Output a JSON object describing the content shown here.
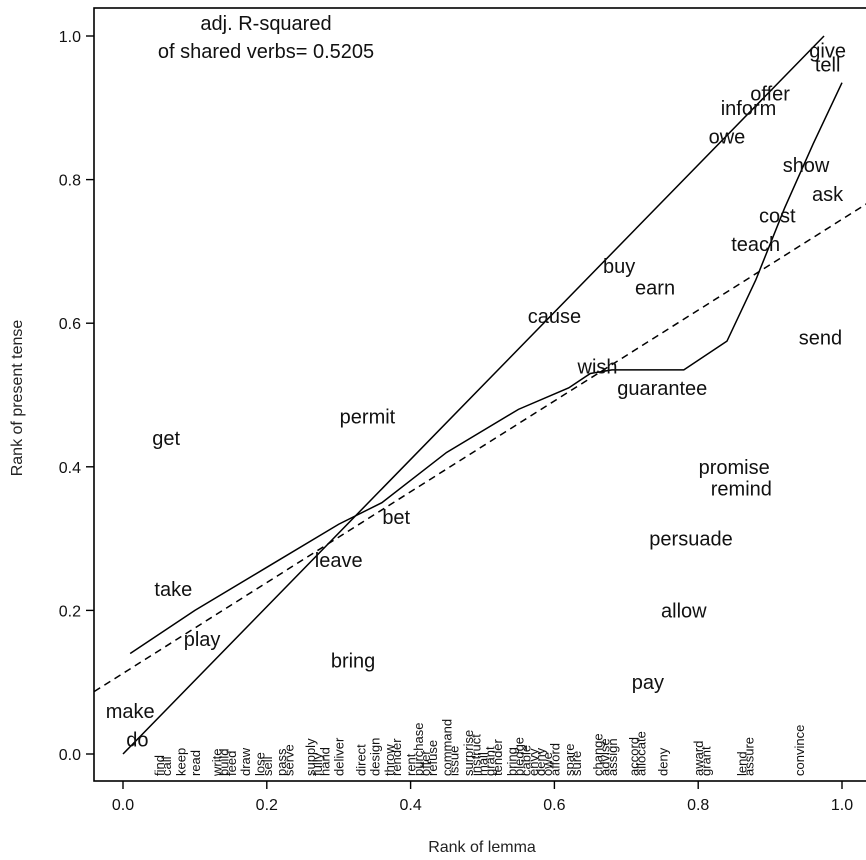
{
  "chart_data": {
    "type": "scatter",
    "xlabel": "Rank of lemma",
    "ylabel": "Rank of present tense",
    "xlim": [
      -0.04,
      1.04
    ],
    "ylim": [
      -0.04,
      1.04
    ],
    "x_ticks": [
      "0.0",
      "0.2",
      "0.4",
      "0.6",
      "0.8",
      "1.0"
    ],
    "y_ticks": [
      "0.0",
      "0.2",
      "0.4",
      "0.6",
      "0.8",
      "1.0"
    ],
    "annotation": [
      "adj. R-squared",
      "of shared verbs= 0.5205"
    ],
    "labeled_points": [
      {
        "label": "give",
        "x": 0.98,
        "y": 0.98
      },
      {
        "label": "tell",
        "x": 0.98,
        "y": 0.96
      },
      {
        "label": "offer",
        "x": 0.9,
        "y": 0.92
      },
      {
        "label": "inform",
        "x": 0.87,
        "y": 0.9
      },
      {
        "label": "owe",
        "x": 0.84,
        "y": 0.86
      },
      {
        "label": "show",
        "x": 0.95,
        "y": 0.82
      },
      {
        "label": "ask",
        "x": 0.98,
        "y": 0.78
      },
      {
        "label": "cost",
        "x": 0.91,
        "y": 0.75
      },
      {
        "label": "teach",
        "x": 0.88,
        "y": 0.71
      },
      {
        "label": "buy",
        "x": 0.69,
        "y": 0.68
      },
      {
        "label": "earn",
        "x": 0.74,
        "y": 0.65
      },
      {
        "label": "cause",
        "x": 0.6,
        "y": 0.61
      },
      {
        "label": "send",
        "x": 0.97,
        "y": 0.58
      },
      {
        "label": "wish",
        "x": 0.66,
        "y": 0.54
      },
      {
        "label": "guarantee",
        "x": 0.75,
        "y": 0.51
      },
      {
        "label": "permit",
        "x": 0.34,
        "y": 0.47
      },
      {
        "label": "get",
        "x": 0.06,
        "y": 0.44
      },
      {
        "label": "promise",
        "x": 0.85,
        "y": 0.4
      },
      {
        "label": "remind",
        "x": 0.86,
        "y": 0.37
      },
      {
        "label": "bet",
        "x": 0.38,
        "y": 0.33
      },
      {
        "label": "persuade",
        "x": 0.79,
        "y": 0.3
      },
      {
        "label": "leave",
        "x": 0.3,
        "y": 0.27
      },
      {
        "label": "take",
        "x": 0.07,
        "y": 0.23
      },
      {
        "label": "allow",
        "x": 0.78,
        "y": 0.2
      },
      {
        "label": "play",
        "x": 0.11,
        "y": 0.16
      },
      {
        "label": "bring",
        "x": 0.32,
        "y": 0.13
      },
      {
        "label": "pay",
        "x": 0.73,
        "y": 0.1
      },
      {
        "label": "make",
        "x": 0.01,
        "y": 0.06
      },
      {
        "label": "do",
        "x": 0.02,
        "y": 0.02
      }
    ],
    "bottom_labels": [
      {
        "label": "find",
        "x": 0.05
      },
      {
        "label": "call",
        "x": 0.06
      },
      {
        "label": "keep",
        "x": 0.08
      },
      {
        "label": "read",
        "x": 0.1
      },
      {
        "label": "write",
        "x": 0.13
      },
      {
        "label": "build",
        "x": 0.14
      },
      {
        "label": "feed",
        "x": 0.15
      },
      {
        "label": "draw",
        "x": 0.17
      },
      {
        "label": "lose",
        "x": 0.19
      },
      {
        "label": "sell",
        "x": 0.2
      },
      {
        "label": "pass",
        "x": 0.22
      },
      {
        "label": "serve",
        "x": 0.23
      },
      {
        "label": "supply",
        "x": 0.26
      },
      {
        "label": "fully",
        "x": 0.27
      },
      {
        "label": "hand",
        "x": 0.28
      },
      {
        "label": "deliver",
        "x": 0.3
      },
      {
        "label": "direct",
        "x": 0.33
      },
      {
        "label": "design",
        "x": 0.35
      },
      {
        "label": "throw",
        "x": 0.37
      },
      {
        "label": "render",
        "x": 0.38
      },
      {
        "label": "rent",
        "x": 0.4
      },
      {
        "label": "purchase",
        "x": 0.41
      },
      {
        "label": "offer",
        "x": 0.42
      },
      {
        "label": "refuse",
        "x": 0.43
      },
      {
        "label": "command",
        "x": 0.45
      },
      {
        "label": "issue",
        "x": 0.46
      },
      {
        "label": "surprise",
        "x": 0.48
      },
      {
        "label": "instruct",
        "x": 0.49
      },
      {
        "label": "mail",
        "x": 0.5
      },
      {
        "label": "grant",
        "x": 0.51
      },
      {
        "label": "tender",
        "x": 0.52
      },
      {
        "label": "bring",
        "x": 0.54
      },
      {
        "label": "pledge",
        "x": 0.55
      },
      {
        "label": "cable",
        "x": 0.56
      },
      {
        "label": "envy",
        "x": 0.57
      },
      {
        "label": "deny",
        "x": 0.58
      },
      {
        "label": "owe",
        "x": 0.59
      },
      {
        "label": "afford",
        "x": 0.6
      },
      {
        "label": "spare",
        "x": 0.62
      },
      {
        "label": "sure",
        "x": 0.63
      },
      {
        "label": "change",
        "x": 0.66
      },
      {
        "label": "advise",
        "x": 0.67
      },
      {
        "label": "assign",
        "x": 0.68
      },
      {
        "label": "accord",
        "x": 0.71
      },
      {
        "label": "allocate",
        "x": 0.72
      },
      {
        "label": "deny",
        "x": 0.75
      },
      {
        "label": "award",
        "x": 0.8
      },
      {
        "label": "grant",
        "x": 0.81
      },
      {
        "label": "lend",
        "x": 0.86
      },
      {
        "label": "assure",
        "x": 0.87
      },
      {
        "label": "convince",
        "x": 0.94
      }
    ],
    "lines": [
      {
        "style": "solid",
        "points": [
          [
            0.0,
            0.0
          ],
          [
            0.975,
            1.0
          ]
        ]
      },
      {
        "style": "dashed",
        "points": [
          [
            -0.04,
            0.087
          ],
          [
            1.04,
            0.77
          ]
        ]
      },
      {
        "style": "solid",
        "points": [
          [
            0.01,
            0.14
          ],
          [
            0.04,
            0.16
          ],
          [
            0.1,
            0.2
          ],
          [
            0.2,
            0.26
          ],
          [
            0.3,
            0.32
          ],
          [
            0.36,
            0.35
          ],
          [
            0.45,
            0.42
          ],
          [
            0.55,
            0.48
          ],
          [
            0.62,
            0.51
          ],
          [
            0.65,
            0.53
          ],
          [
            0.68,
            0.535
          ],
          [
            0.78,
            0.535
          ],
          [
            0.84,
            0.575
          ],
          [
            0.88,
            0.66
          ],
          [
            0.92,
            0.76
          ],
          [
            0.96,
            0.85
          ],
          [
            1.0,
            0.935
          ]
        ]
      }
    ]
  }
}
